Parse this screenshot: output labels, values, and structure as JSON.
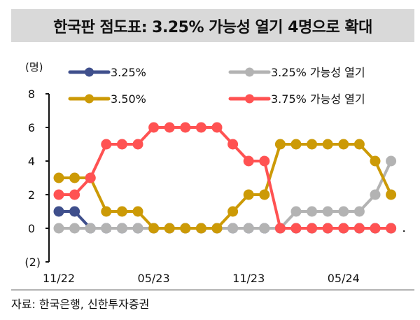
{
  "header": {
    "title": "한국판 점도표: 3.25% 가능성 열기 4명으로 확대"
  },
  "footer": {
    "source": "자료: 한국은행, 신한투자증권"
  },
  "chart_data": {
    "type": "line",
    "title": "한국판 점도표: 3.25% 가능성 열기 4명으로 확대",
    "xlabel": "",
    "ylabel": "(명)",
    "ylim": [
      -2,
      8
    ],
    "yticks": [
      8,
      6,
      4,
      2,
      0,
      -2
    ],
    "ytick_labels": [
      "8",
      "6",
      "4",
      "2",
      "0",
      "(2)"
    ],
    "x_tick_labels": [
      {
        "index": 0,
        "label": "11/22"
      },
      {
        "index": 6,
        "label": "05/23"
      },
      {
        "index": 12,
        "label": "11/23"
      },
      {
        "index": 18,
        "label": "05/24"
      }
    ],
    "grid": false,
    "legend_position": "top",
    "point_count": 22,
    "series": [
      {
        "name": "3.25%",
        "color": "#3f4f8c",
        "values": [
          1,
          1,
          0,
          0,
          0,
          0,
          0,
          0,
          0,
          0,
          0,
          0,
          0,
          0,
          0,
          0,
          0,
          0,
          0,
          0,
          0,
          0
        ]
      },
      {
        "name": "3.25% 가능성 열기",
        "color": "#b3b3b3",
        "values": [
          0,
          0,
          0,
          0,
          0,
          0,
          0,
          0,
          0,
          0,
          0,
          0,
          0,
          0,
          0,
          1,
          1,
          1,
          1,
          1,
          2,
          4
        ]
      },
      {
        "name": "3.50%",
        "color": "#cc9a06",
        "values": [
          3,
          3,
          3,
          1,
          1,
          1,
          0,
          0,
          0,
          0,
          0,
          1,
          2,
          2,
          5,
          5,
          5,
          5,
          5,
          5,
          4,
          2
        ]
      },
      {
        "name": "3.75% 가능성 열기",
        "color": "#ff5252",
        "values": [
          2,
          2,
          3,
          5,
          5,
          5,
          6,
          6,
          6,
          6,
          6,
          5,
          4,
          4,
          0,
          0,
          0,
          0,
          0,
          0,
          0,
          0
        ]
      }
    ],
    "legend": [
      {
        "name": "3.25%",
        "color": "#3f4f8c"
      },
      {
        "name": "3.25% 가능성 열기",
        "color": "#b3b3b3"
      },
      {
        "name": "3.50%",
        "color": "#cc9a06"
      },
      {
        "name": "3.75% 가능성 열기",
        "color": "#ff5252"
      }
    ]
  }
}
